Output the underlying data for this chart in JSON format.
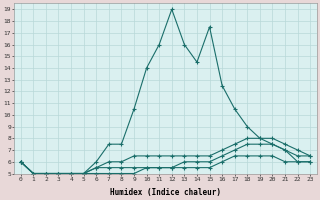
{
  "xlabel": "Humidex (Indice chaleur)",
  "bg_color": "#cce8e8",
  "plot_bg_color": "#daf0f0",
  "line_color": "#1a6e6a",
  "grid_color": "#b8d8d8",
  "outer_bg": "#e8d8d8",
  "xlim": [
    -0.5,
    23.5
  ],
  "ylim": [
    5,
    19.5
  ],
  "xticks": [
    0,
    1,
    2,
    3,
    4,
    5,
    6,
    7,
    8,
    9,
    10,
    11,
    12,
    13,
    14,
    15,
    16,
    17,
    18,
    19,
    20,
    21,
    22,
    23
  ],
  "yticks": [
    5,
    6,
    7,
    8,
    9,
    10,
    11,
    12,
    13,
    14,
    15,
    16,
    17,
    18,
    19
  ],
  "series": [
    [
      6,
      5,
      5,
      5,
      5,
      5,
      6,
      7.5,
      7.5,
      10.5,
      14,
      16,
      19,
      16,
      14.5,
      17.5,
      12.5,
      10.5,
      9,
      8,
      7.5,
      7,
      6,
      6
    ],
    [
      6,
      5,
      5,
      5,
      5,
      5,
      5.5,
      5.5,
      5.5,
      5.5,
      5.5,
      5.5,
      5.5,
      6,
      6,
      6,
      6.5,
      7,
      7.5,
      7.5,
      7.5,
      7,
      6.5,
      6.5
    ],
    [
      6,
      5,
      5,
      5,
      5,
      5,
      5.5,
      6,
      6,
      6.5,
      6.5,
      6.5,
      6.5,
      6.5,
      6.5,
      6.5,
      7,
      7.5,
      8,
      8,
      8,
      7.5,
      7,
      6.5
    ],
    [
      6,
      5,
      5,
      5,
      5,
      5,
      5,
      5,
      5,
      5,
      5.5,
      5.5,
      5.5,
      5.5,
      5.5,
      5.5,
      6,
      6.5,
      6.5,
      6.5,
      6.5,
      6,
      6,
      6
    ]
  ]
}
